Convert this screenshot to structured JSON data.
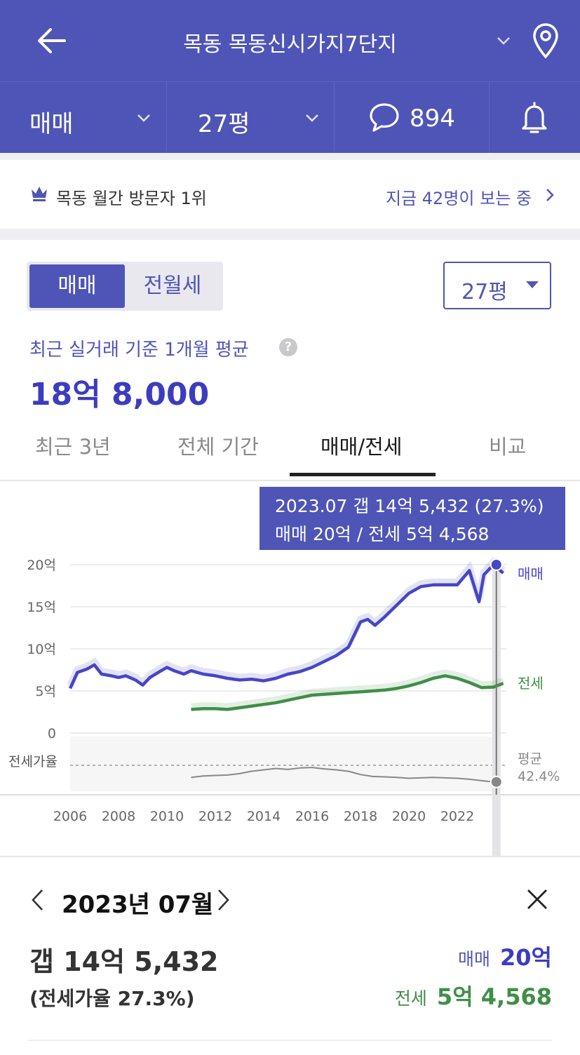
{
  "header": {
    "title": "목동 목동신시가지7단지",
    "icons": [
      "back-arrow-icon",
      "chevron-down-icon",
      "location-pin-icon"
    ]
  },
  "subbar": {
    "trade_type": "매매",
    "area": "27평",
    "comment_count": "894",
    "icons": [
      "chat-bubble-icon",
      "bell-icon"
    ]
  },
  "rank_banner": {
    "rank_text": "목동 월간 방문자 1위",
    "viewers_text": "지금 42명이 보는 중",
    "icons": [
      "crown-icon",
      "chevron-right-icon"
    ]
  },
  "price_panel": {
    "toggle": [
      "매매",
      "전월세"
    ],
    "size_select": "27평",
    "basis_label": "최근 실거래 기준 1개월 평균",
    "price": "18억 8,000"
  },
  "chart_tabs": [
    "최근 3년",
    "전체 기간",
    "매매/전세",
    "비교"
  ],
  "active_chart_tab": "매매/전세",
  "tooltip": {
    "line1": "2023.07  갭 14억 5,432 (27.3%)",
    "line2": "매매 20억 / 전세 5억 4,568"
  },
  "chart_data": {
    "type": "line",
    "x_unit": "year",
    "ylim": [
      0,
      20
    ],
    "y_ticks": [
      0,
      5,
      10,
      15,
      20
    ],
    "y_tick_labels": [
      "0",
      "5억",
      "10억",
      "15억",
      "20억"
    ],
    "x_tick_labels": [
      "2006",
      "2008",
      "2010",
      "2012",
      "2014",
      "2016",
      "2018",
      "2020",
      "2022"
    ],
    "grid": true,
    "series": [
      {
        "name": "매매",
        "color": "#4646c8",
        "points": [
          [
            2006.0,
            5.3
          ],
          [
            2006.3,
            7.2
          ],
          [
            2006.7,
            7.6
          ],
          [
            2007.0,
            8.1
          ],
          [
            2007.3,
            7.0
          ],
          [
            2007.7,
            6.8
          ],
          [
            2008.0,
            6.6
          ],
          [
            2008.3,
            6.8
          ],
          [
            2008.7,
            6.3
          ],
          [
            2009.0,
            5.7
          ],
          [
            2009.3,
            6.6
          ],
          [
            2009.7,
            7.3
          ],
          [
            2010.0,
            7.8
          ],
          [
            2010.3,
            7.4
          ],
          [
            2010.7,
            7.0
          ],
          [
            2011.0,
            7.4
          ],
          [
            2011.5,
            7.0
          ],
          [
            2012.0,
            6.8
          ],
          [
            2012.5,
            6.5
          ],
          [
            2013.0,
            6.3
          ],
          [
            2013.5,
            6.4
          ],
          [
            2014.0,
            6.2
          ],
          [
            2014.5,
            6.5
          ],
          [
            2015.0,
            7.0
          ],
          [
            2015.5,
            7.3
          ],
          [
            2016.0,
            7.8
          ],
          [
            2016.5,
            8.5
          ],
          [
            2017.0,
            9.2
          ],
          [
            2017.5,
            10.2
          ],
          [
            2018.0,
            13.2
          ],
          [
            2018.3,
            13.5
          ],
          [
            2018.6,
            12.8
          ],
          [
            2019.0,
            13.8
          ],
          [
            2019.5,
            15.2
          ],
          [
            2020.0,
            16.6
          ],
          [
            2020.5,
            17.4
          ],
          [
            2021.0,
            17.6
          ],
          [
            2021.5,
            17.6
          ],
          [
            2022.0,
            17.6
          ],
          [
            2022.5,
            19.3
          ],
          [
            2022.9,
            15.6
          ],
          [
            2023.1,
            18.8
          ],
          [
            2023.5,
            20.0
          ],
          [
            2023.9,
            19.0
          ]
        ]
      },
      {
        "name": "전세",
        "color": "#3f8f46",
        "points": [
          [
            2011.0,
            2.8
          ],
          [
            2011.5,
            2.9
          ],
          [
            2012.0,
            2.9
          ],
          [
            2012.5,
            2.8
          ],
          [
            2013.0,
            3.0
          ],
          [
            2013.5,
            3.2
          ],
          [
            2014.0,
            3.4
          ],
          [
            2014.5,
            3.6
          ],
          [
            2015.0,
            3.9
          ],
          [
            2015.5,
            4.2
          ],
          [
            2016.0,
            4.5
          ],
          [
            2016.5,
            4.6
          ],
          [
            2017.0,
            4.7
          ],
          [
            2017.5,
            4.8
          ],
          [
            2018.0,
            4.9
          ],
          [
            2018.5,
            5.0
          ],
          [
            2019.0,
            5.1
          ],
          [
            2019.5,
            5.3
          ],
          [
            2020.0,
            5.6
          ],
          [
            2020.5,
            6.0
          ],
          [
            2021.0,
            6.5
          ],
          [
            2021.5,
            6.8
          ],
          [
            2022.0,
            6.5
          ],
          [
            2022.5,
            6.0
          ],
          [
            2023.0,
            5.4
          ],
          [
            2023.5,
            5.46
          ],
          [
            2023.9,
            5.9
          ]
        ]
      },
      {
        "name": "전세가율",
        "color": "#888888",
        "points": [
          [
            2011.0,
            37
          ],
          [
            2011.5,
            40
          ],
          [
            2012.0,
            41
          ],
          [
            2012.5,
            42
          ],
          [
            2013.0,
            45
          ],
          [
            2013.5,
            50
          ],
          [
            2014.0,
            53
          ],
          [
            2014.5,
            56
          ],
          [
            2015.0,
            54
          ],
          [
            2015.5,
            57
          ],
          [
            2016.0,
            58
          ],
          [
            2016.5,
            55
          ],
          [
            2017.0,
            53
          ],
          [
            2017.5,
            50
          ],
          [
            2018.0,
            43
          ],
          [
            2018.5,
            39
          ],
          [
            2019.0,
            38
          ],
          [
            2019.5,
            37
          ],
          [
            2020.0,
            35
          ],
          [
            2020.5,
            36
          ],
          [
            2021.0,
            37
          ],
          [
            2021.5,
            36
          ],
          [
            2022.0,
            35
          ],
          [
            2022.5,
            33
          ],
          [
            2023.0,
            30
          ],
          [
            2023.5,
            27.3
          ]
        ]
      }
    ],
    "ratio_band": {
      "label": "전세가율",
      "average_label": "평균",
      "average_value": "42.4%",
      "average": 42.4
    },
    "selected_x": 2023.5
  },
  "detail": {
    "date": "2023년 07월",
    "gap": "갭 14억 5,432",
    "ratio": "(전세가율 27.3%)",
    "sale_label": "매매",
    "sale_value": "20억",
    "jeonse_label": "전세",
    "jeonse_value": "5억 4,568"
  }
}
